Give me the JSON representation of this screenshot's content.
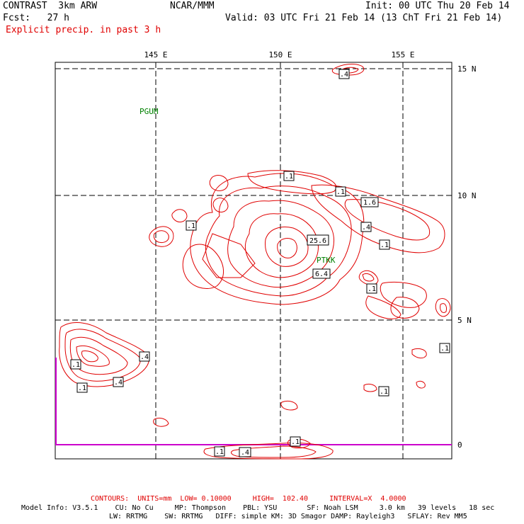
{
  "header": {
    "model": "CONTRAST  3km ARW",
    "org": "NCAR/MMM",
    "init": "Init: 00 UTC Thu 20 Feb 14",
    "fcst": "Fcst:   27 h",
    "valid": "Valid: 03 UTC Fri 21 Feb 14 (13 ChT Fri 21 Feb 14)",
    "field": "Explicit precip. in past 3 h"
  },
  "map": {
    "lon_labels": [
      "145 E",
      "150 E",
      "155 E"
    ],
    "lat_labels": [
      "15 N",
      "10 N",
      "5 N",
      "0"
    ],
    "stations": [
      "PGUM",
      "PTKK"
    ],
    "contour_color": "#e00000",
    "station_color": "#008000",
    "boundary_color": "#cc00cc",
    "value_labels": [
      ".4",
      ".1",
      ".1",
      "1.6",
      ".1",
      ".4",
      ".1",
      "25.6",
      "6.4",
      ".1",
      ".1",
      ".4",
      ".1",
      ".4",
      ".1",
      ".1",
      ".1",
      ".1",
      ".4"
    ]
  },
  "footer": {
    "contours": "CONTOURS:  UNITS=mm  LOW= 0.10000     HIGH=  102.40     INTERVAL=X  4.0000",
    "model_info_1": "Model Info: V3.5.1    CU: No Cu     MP: Thompson    PBL: YSU       SF: Noah LSM     3.0 km   39 levels   18 sec",
    "model_info_2": "LW: RRTMG    SW: RRTMG   DIFF: simple KM: 3D Smagor DAMP: Rayleigh3   SFLAY: Rev MM5"
  }
}
